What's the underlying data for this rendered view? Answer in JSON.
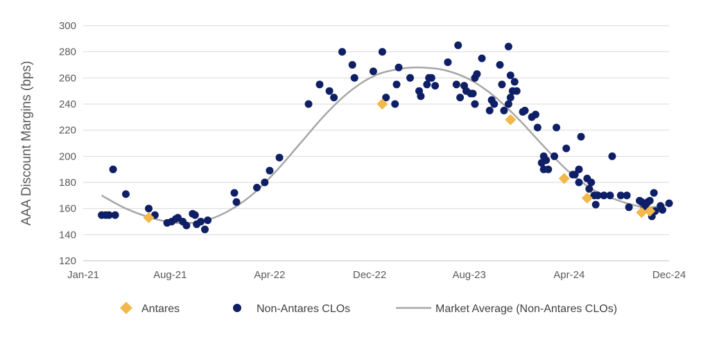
{
  "chart_data": {
    "type": "scatter",
    "title": "",
    "xlabel": "",
    "ylabel": "AAA Discount Margins (bps)",
    "x_type": "date",
    "xlim": [
      "2021-01-01",
      "2024-12-01"
    ],
    "x_ticks": [
      {
        "date": "2021-01-01",
        "label": "Jan-21"
      },
      {
        "date": "2021-08-01",
        "label": "Aug-21"
      },
      {
        "date": "2022-04-01",
        "label": "Apr-22"
      },
      {
        "date": "2022-12-01",
        "label": "Dec-22"
      },
      {
        "date": "2023-08-01",
        "label": "Aug-23"
      },
      {
        "date": "2024-04-01",
        "label": "Apr-24"
      },
      {
        "date": "2024-12-01",
        "label": "Dec-24"
      }
    ],
    "ylim": [
      120,
      300
    ],
    "y_ticks": [
      120,
      140,
      160,
      180,
      200,
      220,
      240,
      260,
      280,
      300
    ],
    "grid": "horizontal",
    "legend_position": "bottom",
    "series": [
      {
        "name": "Antares",
        "kind": "scatter",
        "marker": "diamond",
        "color": "#F2B84B",
        "points": [
          [
            "2021-06-10",
            153
          ],
          [
            "2023-01-01",
            240
          ],
          [
            "2023-11-10",
            228
          ],
          [
            "2024-03-20",
            183
          ],
          [
            "2024-05-15",
            168
          ],
          [
            "2024-09-25",
            157
          ],
          [
            "2024-10-15",
            158
          ]
        ]
      },
      {
        "name": "Non-Antares CLOs",
        "kind": "scatter",
        "marker": "circle",
        "color": "#0E1F66",
        "points": [
          [
            "2021-02-15",
            155
          ],
          [
            "2021-02-25",
            155
          ],
          [
            "2021-03-05",
            155
          ],
          [
            "2021-03-15",
            190
          ],
          [
            "2021-03-20",
            155
          ],
          [
            "2021-04-15",
            171
          ],
          [
            "2021-06-10",
            160
          ],
          [
            "2021-06-25",
            155
          ],
          [
            "2021-07-25",
            149
          ],
          [
            "2021-08-05",
            150
          ],
          [
            "2021-08-15",
            152
          ],
          [
            "2021-08-20",
            153
          ],
          [
            "2021-09-01",
            150
          ],
          [
            "2021-09-10",
            147
          ],
          [
            "2021-09-25",
            156
          ],
          [
            "2021-10-01",
            155
          ],
          [
            "2021-10-05",
            148
          ],
          [
            "2021-10-15",
            150
          ],
          [
            "2021-10-25",
            144
          ],
          [
            "2021-11-01",
            151
          ],
          [
            "2022-01-05",
            172
          ],
          [
            "2022-01-10",
            165
          ],
          [
            "2022-03-01",
            176
          ],
          [
            "2022-03-20",
            180
          ],
          [
            "2022-04-01",
            189
          ],
          [
            "2022-04-25",
            199
          ],
          [
            "2022-07-05",
            240
          ],
          [
            "2022-08-01",
            255
          ],
          [
            "2022-08-25",
            250
          ],
          [
            "2022-09-05",
            245
          ],
          [
            "2022-09-25",
            280
          ],
          [
            "2022-10-20",
            270
          ],
          [
            "2022-10-25",
            260
          ],
          [
            "2022-12-10",
            265
          ],
          [
            "2023-01-01",
            280
          ],
          [
            "2023-01-10",
            245
          ],
          [
            "2023-02-01",
            240
          ],
          [
            "2023-02-05",
            255
          ],
          [
            "2023-02-10",
            268
          ],
          [
            "2023-03-10",
            260
          ],
          [
            "2023-04-01",
            250
          ],
          [
            "2023-04-05",
            246
          ],
          [
            "2023-04-20",
            255
          ],
          [
            "2023-04-25",
            260
          ],
          [
            "2023-05-01",
            260
          ],
          [
            "2023-05-10",
            254
          ],
          [
            "2023-06-10",
            272
          ],
          [
            "2023-07-01",
            255
          ],
          [
            "2023-07-05",
            285
          ],
          [
            "2023-07-10",
            245
          ],
          [
            "2023-07-20",
            254
          ],
          [
            "2023-07-25",
            250
          ],
          [
            "2023-08-05",
            248
          ],
          [
            "2023-08-10",
            248
          ],
          [
            "2023-08-15",
            240
          ],
          [
            "2023-08-15",
            260
          ],
          [
            "2023-08-20",
            263
          ],
          [
            "2023-09-01",
            275
          ],
          [
            "2023-09-20",
            235
          ],
          [
            "2023-09-25",
            243
          ],
          [
            "2023-10-01",
            240
          ],
          [
            "2023-10-15",
            270
          ],
          [
            "2023-10-20",
            255
          ],
          [
            "2023-10-25",
            235
          ],
          [
            "2023-11-05",
            240
          ],
          [
            "2023-11-05",
            284
          ],
          [
            "2023-11-10",
            262
          ],
          [
            "2023-11-10",
            245
          ],
          [
            "2023-11-15",
            250
          ],
          [
            "2023-11-20",
            257
          ],
          [
            "2023-11-25",
            250
          ],
          [
            "2023-12-10",
            234
          ],
          [
            "2023-12-15",
            235
          ],
          [
            "2024-01-01",
            230
          ],
          [
            "2024-01-10",
            232
          ],
          [
            "2024-01-15",
            222
          ],
          [
            "2024-01-25",
            195
          ],
          [
            "2024-01-30",
            200
          ],
          [
            "2024-01-30",
            190
          ],
          [
            "2024-02-05",
            197
          ],
          [
            "2024-02-10",
            190
          ],
          [
            "2024-02-25",
            200
          ],
          [
            "2024-03-01",
            222
          ],
          [
            "2024-03-25",
            206
          ],
          [
            "2024-04-10",
            186
          ],
          [
            "2024-04-15",
            186
          ],
          [
            "2024-04-25",
            190
          ],
          [
            "2024-04-25",
            180
          ],
          [
            "2024-04-30",
            215
          ],
          [
            "2024-05-15",
            183
          ],
          [
            "2024-05-20",
            175
          ],
          [
            "2024-05-25",
            180
          ],
          [
            "2024-06-01",
            170
          ],
          [
            "2024-06-05",
            163
          ],
          [
            "2024-06-10",
            170
          ],
          [
            "2024-06-25",
            170
          ],
          [
            "2024-07-10",
            170
          ],
          [
            "2024-07-15",
            200
          ],
          [
            "2024-08-05",
            170
          ],
          [
            "2024-08-20",
            170
          ],
          [
            "2024-08-25",
            161
          ],
          [
            "2024-09-20",
            166
          ],
          [
            "2024-09-25",
            165
          ],
          [
            "2024-10-01",
            160
          ],
          [
            "2024-10-05",
            163
          ],
          [
            "2024-10-10",
            165
          ],
          [
            "2024-10-15",
            166
          ],
          [
            "2024-10-20",
            154
          ],
          [
            "2024-10-25",
            172
          ],
          [
            "2024-10-28",
            158
          ],
          [
            "2024-11-10",
            162
          ],
          [
            "2024-11-15",
            159
          ],
          [
            "2024-12-01",
            164
          ]
        ]
      },
      {
        "name": "Market Average (Non-Antares CLOs)",
        "kind": "line",
        "color": "#A6A6A6",
        "points": [
          [
            "2021-02-15",
            170
          ],
          [
            "2021-04-15",
            160
          ],
          [
            "2021-06-15",
            153
          ],
          [
            "2021-08-15",
            149
          ],
          [
            "2021-10-15",
            150
          ],
          [
            "2021-12-15",
            157
          ],
          [
            "2022-02-15",
            170
          ],
          [
            "2022-04-15",
            188
          ],
          [
            "2022-06-15",
            210
          ],
          [
            "2022-08-15",
            232
          ],
          [
            "2022-10-15",
            250
          ],
          [
            "2022-12-15",
            262
          ],
          [
            "2023-02-15",
            267
          ],
          [
            "2023-04-01",
            268
          ],
          [
            "2023-06-01",
            266
          ],
          [
            "2023-08-01",
            259
          ],
          [
            "2023-10-01",
            246
          ],
          [
            "2023-12-01",
            228
          ],
          [
            "2024-02-01",
            207
          ],
          [
            "2024-04-01",
            188
          ],
          [
            "2024-06-01",
            174
          ],
          [
            "2024-08-01",
            166
          ],
          [
            "2024-10-01",
            161
          ],
          [
            "2024-11-15",
            162
          ],
          [
            "2024-12-01",
            164
          ]
        ]
      }
    ]
  }
}
